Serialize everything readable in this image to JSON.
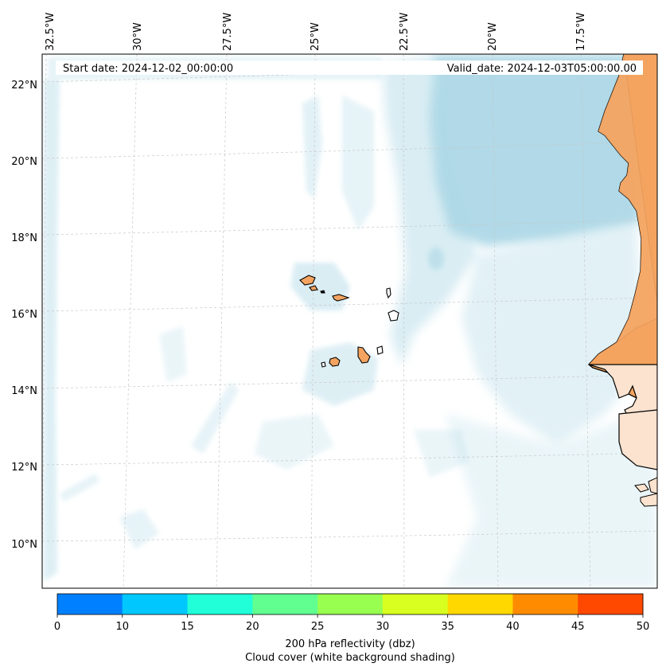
{
  "map": {
    "start_date": "Start date: 2024-12-02_00:00:00",
    "valid_date": "Valid_date: 2024-12-03T05:00:00.00",
    "lon_ticks": [
      "32.5°W",
      "30°W",
      "27.5°W",
      "25°W",
      "22.5°W",
      "20°W",
      "17.5°W"
    ],
    "lat_ticks": [
      "22°N",
      "20°N",
      "18°N",
      "16°N",
      "14°N",
      "12°N",
      "10°N"
    ],
    "colors": {
      "land": "#f4a460",
      "cloud_shading": "#add8e6",
      "coastline": "#000000",
      "grid": "#b0b0b0"
    }
  },
  "colorbar": {
    "ticks": [
      "0",
      "10",
      "15",
      "20",
      "25",
      "30",
      "35",
      "40",
      "45",
      "50"
    ],
    "colors": [
      "#0080ff",
      "#00c8ff",
      "#20ffd8",
      "#60ff90",
      "#98ff50",
      "#d8ff20",
      "#ffd800",
      "#ff8c00",
      "#ff4800"
    ],
    "label_line1": "200 hPa reflectivity (dbz)",
    "label_line2": "Cloud cover (white background shading)"
  }
}
